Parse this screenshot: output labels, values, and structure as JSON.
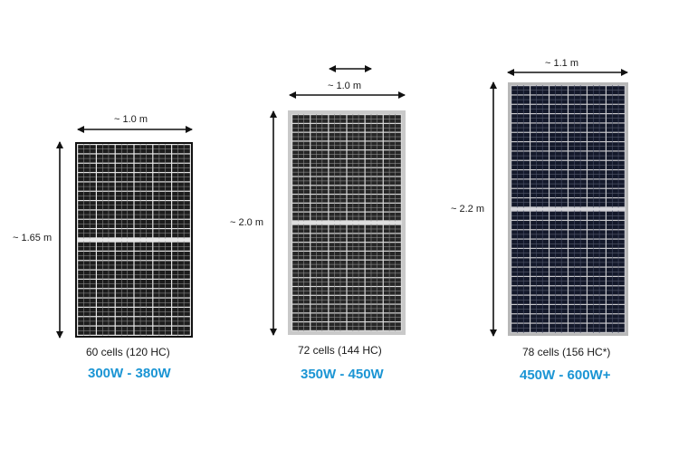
{
  "accent_color": "#1b95d4",
  "panels": [
    {
      "width_label": "~ 1.0 m",
      "height_label": "~ 1.65 m",
      "cells_label": "60 cells (120 HC)",
      "wattage_label": "300W - 380W",
      "cell_columns": 6,
      "cell_rows": 10,
      "half_cut": true
    },
    {
      "width_label": "~ 1.0 m",
      "height_label": "~ 2.0 m",
      "cells_label": "72 cells (144 HC)",
      "wattage_label": "350W - 450W",
      "cell_columns": 6,
      "cell_rows": 12,
      "half_cut": true
    },
    {
      "width_label": "~ 1.1 m",
      "height_label": "~ 2.2 m",
      "cells_label": "78 cells (156 HC*)",
      "wattage_label": "450W - 600W+",
      "cell_columns": 6,
      "cell_rows": 13,
      "half_cut": true
    }
  ]
}
